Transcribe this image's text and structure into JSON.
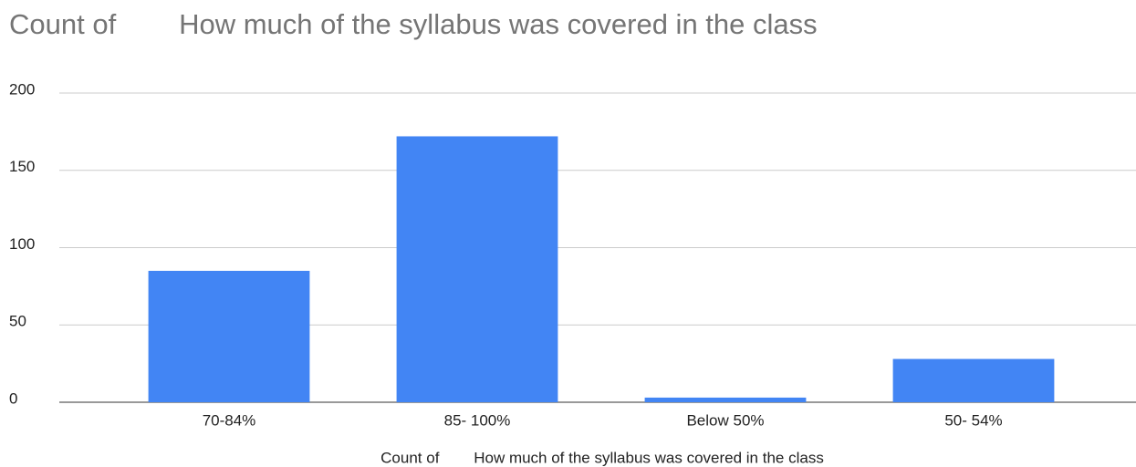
{
  "chart_data": {
    "type": "bar",
    "title": "Count of        How much of the syllabus was covered in the class",
    "x_label": "Count of        How much of the syllabus was covered in the class",
    "categories": [
      "70-84%",
      "85- 100%",
      "Below 50%",
      "50- 54%"
    ],
    "values": [
      85,
      172,
      3,
      28
    ],
    "color": "#4285f4",
    "ylim": [
      0,
      200
    ],
    "yticks": [
      0,
      50,
      100,
      150,
      200
    ],
    "grid": true
  }
}
